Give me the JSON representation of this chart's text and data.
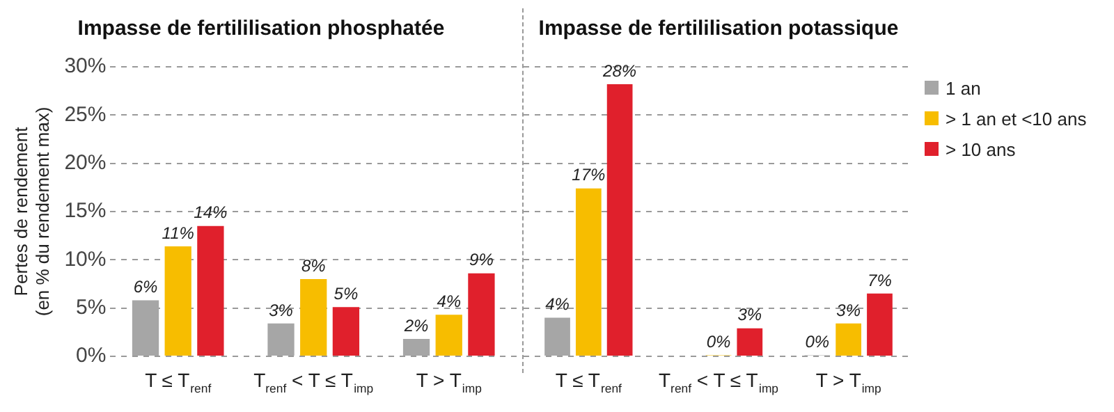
{
  "chart_data": [
    {
      "type": "bar",
      "title": "Impasse de fertililisation phosphatée",
      "ylabel": "Pertes de rendement\n(en % du rendement max)",
      "categories": [
        "T ≤ T$_{renf}$",
        "T$_{renf}$ < T ≤ T$_{imp}$",
        "T > T$_{imp}$"
      ],
      "ylim": [
        0,
        30
      ],
      "yticks": [
        {
          "value": 0,
          "label": "0%"
        },
        {
          "value": 5,
          "label": "5%"
        },
        {
          "value": 10,
          "label": "10%"
        },
        {
          "value": 15,
          "label": "15%"
        },
        {
          "value": 20,
          "label": "20%"
        },
        {
          "value": 25,
          "label": "25%"
        },
        {
          "value": 30,
          "label": "30%"
        }
      ],
      "grid": "y",
      "legend": false,
      "series": [
        {
          "color": "#a6a6a6",
          "values": [
            5.8,
            3.4,
            1.8
          ],
          "value_labels": [
            "6%",
            "3%",
            "2%"
          ]
        },
        {
          "color": "#f7bd00",
          "values": [
            11.4,
            8.0,
            4.3
          ],
          "value_labels": [
            "11%",
            "8%",
            "4%"
          ]
        },
        {
          "color": "#e0202c",
          "values": [
            13.5,
            5.1,
            8.6
          ],
          "value_labels": [
            "14%",
            "5%",
            "9%"
          ]
        }
      ]
    },
    {
      "type": "bar",
      "title": "Impasse de fertililisation potassique",
      "categories": [
        "T ≤ T$_{renf}$",
        "T$_{renf}$ < T ≤ T$_{imp}$",
        "T > T$_{imp}$"
      ],
      "ylim": [
        0,
        30
      ],
      "yticks": [
        0,
        5,
        10,
        15,
        20,
        25,
        30
      ],
      "grid": "y",
      "legend": "right",
      "tick_labels": "x",
      "series": [
        {
          "name": "1 an",
          "color": "#a6a6a6",
          "values": [
            4.0,
            null,
            0.1
          ],
          "value_labels": [
            "4%",
            null,
            "0%"
          ]
        },
        {
          "name": "> 1 an et <10 ans",
          "color": "#f7bd00",
          "values": [
            17.4,
            0.1,
            3.4
          ],
          "value_labels": [
            "17%",
            "0%",
            "3%"
          ]
        },
        {
          "name": "> 10 ans",
          "color": "#e0202c",
          "values": [
            28.2,
            2.9,
            6.5
          ],
          "value_labels": [
            "28%",
            "3%",
            "7%"
          ]
        }
      ]
    }
  ]
}
